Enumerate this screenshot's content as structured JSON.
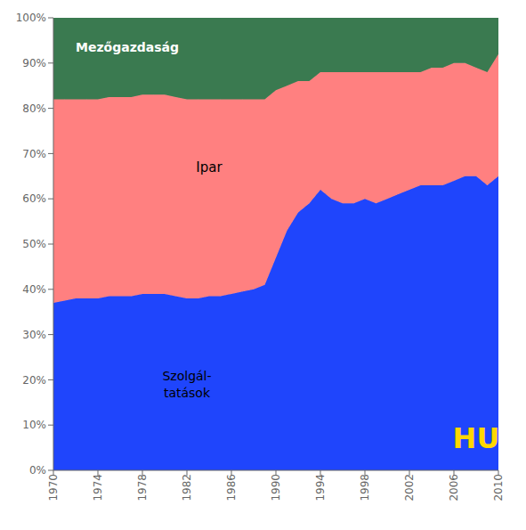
{
  "chart_data": {
    "type": "area",
    "stacked": true,
    "grid": false,
    "x": [
      1970,
      1971,
      1972,
      1973,
      1974,
      1975,
      1976,
      1977,
      1978,
      1979,
      1980,
      1981,
      1982,
      1983,
      1984,
      1985,
      1986,
      1987,
      1988,
      1989,
      1990,
      1991,
      1992,
      1993,
      1994,
      1995,
      1996,
      1997,
      1998,
      1999,
      2000,
      2001,
      2002,
      2003,
      2004,
      2005,
      2006,
      2007,
      2008,
      2009,
      2010
    ],
    "series": [
      {
        "color": "#1F45FC",
        "values": [
          37,
          37.5,
          38,
          38,
          38,
          38.5,
          38.5,
          38.5,
          39,
          39,
          39,
          38.5,
          38,
          38,
          38.5,
          38.5,
          39,
          39.5,
          40,
          41,
          47,
          53,
          57,
          59,
          62,
          60,
          59,
          59,
          60,
          59,
          60,
          61,
          62,
          63,
          63,
          63,
          64,
          65,
          65,
          63,
          65
        ]
      },
      {
        "color": "#FF8080",
        "values": [
          45,
          44.5,
          44,
          44,
          44,
          44,
          44,
          44,
          44,
          44,
          44,
          44,
          44,
          44,
          43.5,
          43.5,
          43,
          42.5,
          42,
          41,
          37,
          32,
          29,
          27,
          26,
          28,
          29,
          29,
          28,
          29,
          28,
          27,
          26,
          25,
          26,
          26,
          26,
          25,
          24,
          25,
          27
        ]
      },
      {
        "color": "#3A7A50",
        "values": [
          18,
          18,
          18,
          18,
          18,
          17.5,
          17.5,
          17.5,
          17,
          17,
          17,
          17.5,
          18,
          18,
          18,
          18,
          18,
          18,
          18,
          18,
          16,
          15,
          14,
          14,
          12,
          12,
          12,
          12,
          12,
          12,
          12,
          12,
          12,
          12,
          11,
          11,
          10,
          10,
          11,
          12,
          8
        ]
      }
    ],
    "xlim": [
      1970,
      2010
    ],
    "xticks": [
      1970,
      1974,
      1978,
      1982,
      1986,
      1990,
      1994,
      1998,
      2002,
      2006,
      2010
    ],
    "ylim": [
      0,
      100
    ],
    "yticks": [
      {
        "value": 0,
        "label": "0%"
      },
      {
        "value": 10,
        "label": "10%"
      },
      {
        "value": 20,
        "label": "20%"
      },
      {
        "value": 30,
        "label": "30%"
      },
      {
        "value": 40,
        "label": "40%"
      },
      {
        "value": 50,
        "label": "50%"
      },
      {
        "value": 60,
        "label": "60%"
      },
      {
        "value": 70,
        "label": "70%"
      },
      {
        "value": 80,
        "label": "80%"
      },
      {
        "value": 90,
        "label": "90%"
      },
      {
        "value": 100,
        "label": "100%"
      }
    ],
    "annotations": [
      {
        "text": "Szolgál-\ntatások",
        "x": 1982,
        "y": 19,
        "color": "#000000"
      },
      {
        "text": "Ipar",
        "x": 1984,
        "y": 67,
        "color": "#000000"
      },
      {
        "text": "Mezőgazdaság",
        "x": 1972,
        "y": 93.5,
        "color": "#FFFFFF"
      },
      {
        "text": "HU",
        "x": 2008,
        "y": 7,
        "color": "#FFD700"
      }
    ]
  }
}
